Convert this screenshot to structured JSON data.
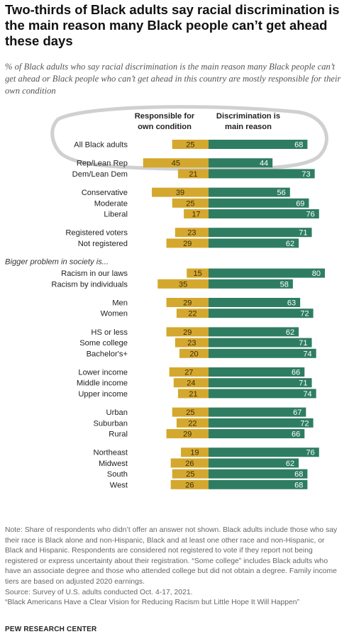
{
  "title": "Two-thirds of Black adults say racial discrimination is the main reason many Black people can’t get ahead these days",
  "subtitle": "% of Black adults who say racial discrimination is the main reason many Black people can’t get ahead or Black people who can’t get ahead in this country are mostly responsible for their own condition",
  "colors": {
    "responsible": "#d4a82e",
    "discrimination": "#2e7d62",
    "label_text": "#222222",
    "value_on_gold": "#3a2e10",
    "value_on_green": "#ffffff"
  },
  "chart_data": {
    "type": "bar",
    "orientation": "horizontal-diverging",
    "series": [
      {
        "name": "Responsible for own condition",
        "direction": "left"
      },
      {
        "name": "Discrimination is main reason",
        "direction": "right"
      }
    ],
    "header_labels": [
      "Responsible for\nown condition",
      "Discrimination is\nmain reason"
    ],
    "section_label": "Bigger problem in society is...",
    "groups": [
      {
        "rows": [
          {
            "label": "All Black adults",
            "responsible": 25,
            "discrimination": 68
          }
        ]
      },
      {
        "rows": [
          {
            "label": "Rep/Lean Rep",
            "responsible": 45,
            "discrimination": 44
          },
          {
            "label": "Dem/Lean Dem",
            "responsible": 21,
            "discrimination": 73
          }
        ]
      },
      {
        "rows": [
          {
            "label": "Conservative",
            "responsible": 39,
            "discrimination": 56
          },
          {
            "label": "Moderate",
            "responsible": 25,
            "discrimination": 69
          },
          {
            "label": "Liberal",
            "responsible": 17,
            "discrimination": 76
          }
        ]
      },
      {
        "rows": [
          {
            "label": "Registered voters",
            "responsible": 23,
            "discrimination": 71
          },
          {
            "label": "Not registered",
            "responsible": 29,
            "discrimination": 62
          }
        ]
      },
      {
        "section": true,
        "rows": [
          {
            "label": "Racism in our laws",
            "responsible": 15,
            "discrimination": 80
          },
          {
            "label": "Racism by individuals",
            "responsible": 35,
            "discrimination": 58
          }
        ]
      },
      {
        "rows": [
          {
            "label": "Men",
            "responsible": 29,
            "discrimination": 63
          },
          {
            "label": "Women",
            "responsible": 22,
            "discrimination": 72
          }
        ]
      },
      {
        "rows": [
          {
            "label": "HS or less",
            "responsible": 29,
            "discrimination": 62
          },
          {
            "label": "Some college",
            "responsible": 23,
            "discrimination": 71
          },
          {
            "label": "Bachelor's+",
            "responsible": 20,
            "discrimination": 74
          }
        ]
      },
      {
        "rows": [
          {
            "label": "Lower income",
            "responsible": 27,
            "discrimination": 66
          },
          {
            "label": "Middle income",
            "responsible": 24,
            "discrimination": 71
          },
          {
            "label": "Upper income",
            "responsible": 21,
            "discrimination": 74
          }
        ]
      },
      {
        "rows": [
          {
            "label": "Urban",
            "responsible": 25,
            "discrimination": 67
          },
          {
            "label": "Suburban",
            "responsible": 22,
            "discrimination": 72
          },
          {
            "label": "Rural",
            "responsible": 29,
            "discrimination": 66
          }
        ]
      },
      {
        "rows": [
          {
            "label": "Northeast",
            "responsible": 19,
            "discrimination": 76
          },
          {
            "label": "Midwest",
            "responsible": 26,
            "discrimination": 62
          },
          {
            "label": "South",
            "responsible": 25,
            "discrimination": 68
          },
          {
            "label": "West",
            "responsible": 26,
            "discrimination": 68
          }
        ]
      }
    ],
    "annotation": "hand-drawn oval around header and All Black adults row"
  },
  "notes": [
    "Note: Share of respondents who didn’t offer an answer not shown. Black adults include those who say their race is Black alone and non-Hispanic, Black and at least one other race and non-Hispanic, or Black and Hispanic. Respondents are considered not registered to vote if they report not being registered or express uncertainty about their registration. “Some college” includes Black adults who have an associate degree and those who attended college but did not obtain a degree. Family income tiers are based on adjusted 2020 earnings.",
    "Source: Survey of U.S. adults conducted Oct. 4-17, 2021.",
    "“Black Americans Have a Clear Vision for Reducing Racism but Little Hope It Will Happen”"
  ],
  "brand": "PEW RESEARCH CENTER"
}
